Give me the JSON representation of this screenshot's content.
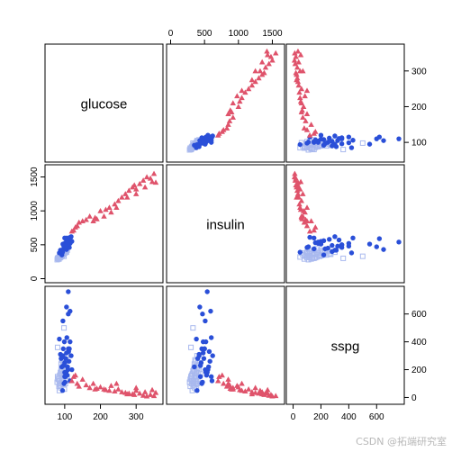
{
  "chart_data": {
    "type": "scatter",
    "variables": [
      "glucose",
      "insulin",
      "sspg"
    ],
    "ranges": {
      "glucose": [
        60,
        360
      ],
      "insulin": [
        20,
        1600
      ],
      "sspg": [
        -10,
        760
      ]
    },
    "ticks": {
      "glucose": [
        100,
        200,
        300
      ],
      "insulin": [
        0,
        500,
        1000,
        1500
      ],
      "sspg": [
        0,
        200,
        400,
        600
      ]
    },
    "colors": {
      "overt": "#df536b",
      "chemical": "#2a4fd8",
      "normal": "#a9b9ee"
    },
    "series": [
      {
        "marker": "triangle",
        "color": "#df536b",
        "points": [
          [
            120,
            700,
            120
          ],
          [
            125,
            715,
            150
          ],
          [
            130,
            760,
            160
          ],
          [
            135,
            780,
            100
          ],
          [
            140,
            830,
            80
          ],
          [
            150,
            850,
            130
          ],
          [
            160,
            870,
            90
          ],
          [
            170,
            920,
            70
          ],
          [
            185,
            900,
            60
          ],
          [
            200,
            1000,
            75
          ],
          [
            215,
            1020,
            55
          ],
          [
            225,
            1050,
            50
          ],
          [
            240,
            1100,
            45
          ],
          [
            250,
            1150,
            60
          ],
          [
            260,
            1200,
            40
          ],
          [
            270,
            1250,
            35
          ],
          [
            280,
            1300,
            30
          ],
          [
            290,
            1350,
            25
          ],
          [
            295,
            1380,
            20
          ],
          [
            300,
            1320,
            50
          ],
          [
            310,
            1400,
            30
          ],
          [
            320,
            1450,
            15
          ],
          [
            330,
            1500,
            10
          ],
          [
            340,
            1480,
            20
          ],
          [
            350,
            1550,
            12
          ],
          [
            355,
            1420,
            35
          ],
          [
            345,
            1430,
            55
          ],
          [
            300,
            1250,
            70
          ],
          [
            275,
            1200,
            25
          ],
          [
            325,
            1350,
            40
          ],
          [
            245,
            1050,
            100
          ],
          [
            230,
            980,
            85
          ],
          [
            210,
            920,
            60
          ],
          [
            180,
            850,
            100
          ],
          [
            190,
            880,
            65
          ]
        ]
      },
      {
        "marker": "dot",
        "color": "#2a4fd8",
        "points": [
          [
            95,
            420,
            300
          ],
          [
            100,
            450,
            250
          ],
          [
            105,
            480,
            320
          ],
          [
            110,
            500,
            350
          ],
          [
            115,
            520,
            400
          ],
          [
            120,
            550,
            200
          ],
          [
            100,
            600,
            150
          ],
          [
            105,
            430,
            650
          ],
          [
            110,
            470,
            600
          ],
          [
            95,
            510,
            550
          ],
          [
            90,
            400,
            280
          ],
          [
            100,
            520,
            180
          ],
          [
            108,
            560,
            220
          ],
          [
            112,
            580,
            260
          ],
          [
            115,
            610,
            120
          ],
          [
            102,
            440,
            150
          ],
          [
            98,
            460,
            100
          ],
          [
            96,
            500,
            350
          ],
          [
            104,
            540,
            180
          ],
          [
            106,
            600,
            430
          ],
          [
            118,
            620,
            300
          ],
          [
            85,
            380,
            420
          ],
          [
            92,
            350,
            220
          ],
          [
            88,
            420,
            310
          ],
          [
            113,
            460,
            350
          ],
          [
            107,
            530,
            160
          ],
          [
            101,
            470,
            110
          ],
          [
            109,
            510,
            200
          ],
          [
            97,
            440,
            230
          ],
          [
            103,
            490,
            280
          ],
          [
            111,
            570,
            330
          ],
          [
            94,
            390,
            50
          ],
          [
            99,
            480,
            400
          ],
          [
            110,
            540,
            760
          ],
          [
            115,
            590,
            620
          ]
        ]
      },
      {
        "marker": "square",
        "color": "#a9b9ee",
        "points": [
          [
            80,
            300,
            150
          ],
          [
            85,
            320,
            120
          ],
          [
            88,
            350,
            180
          ],
          [
            90,
            340,
            200
          ],
          [
            92,
            360,
            160
          ],
          [
            95,
            380,
            100
          ],
          [
            98,
            400,
            250
          ],
          [
            100,
            390,
            220
          ],
          [
            82,
            310,
            130
          ],
          [
            86,
            330,
            90
          ],
          [
            89,
            350,
            70
          ],
          [
            91,
            370,
            110
          ],
          [
            94,
            380,
            140
          ],
          [
            96,
            400,
            170
          ],
          [
            99,
            420,
            200
          ],
          [
            101,
            410,
            230
          ],
          [
            84,
            290,
            80
          ],
          [
            87,
            310,
            100
          ],
          [
            93,
            340,
            120
          ],
          [
            97,
            360,
            150
          ],
          [
            100,
            380,
            180
          ],
          [
            103,
            400,
            210
          ],
          [
            90,
            350,
            240
          ],
          [
            95,
            370,
            260
          ],
          [
            105,
            390,
            300
          ],
          [
            80,
            300,
            360
          ],
          [
            85,
            320,
            50
          ],
          [
            88,
            340,
            90
          ],
          [
            92,
            360,
            270
          ],
          [
            98,
            330,
            500
          ],
          [
            83,
            290,
            130
          ],
          [
            86,
            310,
            160
          ],
          [
            91,
            330,
            190
          ],
          [
            94,
            350,
            220
          ],
          [
            97,
            370,
            130
          ],
          [
            102,
            390,
            100
          ],
          [
            79,
            280,
            110
          ],
          [
            81,
            300,
            140
          ],
          [
            89,
            320,
            170
          ],
          [
            93,
            340,
            200
          ],
          [
            96,
            360,
            90
          ],
          [
            99,
            380,
            60
          ],
          [
            104,
            400,
            120
          ],
          [
            107,
            420,
            150
          ],
          [
            100,
            440,
            170
          ]
        ]
      }
    ]
  },
  "watermark": "CSDN @拓端研究室"
}
